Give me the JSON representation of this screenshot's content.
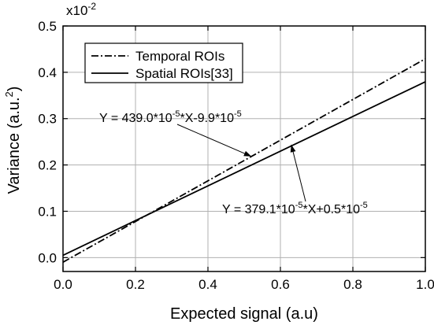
{
  "chart_data": {
    "type": "line",
    "xlabel": "Expected signal (a.u)",
    "ylabel": "Variance (a.u.",
    "ylabel_sup": "2",
    "ylabel_end": ")",
    "y_multiplier": "x10",
    "y_multiplier_exp": "-2",
    "xlim": [
      0.0,
      1.0
    ],
    "ylim": [
      -0.03,
      0.5
    ],
    "xticks": [
      "0.0",
      "0.2",
      "0.4",
      "0.6",
      "0.8",
      "1.0"
    ],
    "yticks": [
      "0.0",
      "0.1",
      "0.2",
      "0.3",
      "0.4",
      "0.5"
    ],
    "grid": true,
    "legend_position": "top-left",
    "series": [
      {
        "name": "Temporal ROIs",
        "style": "dash-dot",
        "color": "#000000",
        "x": [
          0.0,
          1.0
        ],
        "y": [
          -0.0099,
          0.4291
        ]
      },
      {
        "name": "Spatial ROIs[33]",
        "style": "solid",
        "color": "#000000",
        "x": [
          0.0,
          1.0
        ],
        "y": [
          0.005,
          0.3796
        ]
      }
    ],
    "annotations": [
      {
        "id": "temporal-eq",
        "parts": [
          "Y = 439.0*10",
          "-5",
          "*X-9.9*10",
          "-5"
        ],
        "points_to": [
          0.52,
          0.2184
        ]
      },
      {
        "id": "spatial-eq",
        "parts": [
          "Y = 379.1*10",
          "-5",
          "*X+0.5*10",
          "-5"
        ],
        "points_to": [
          0.63,
          0.2438
        ]
      }
    ]
  }
}
